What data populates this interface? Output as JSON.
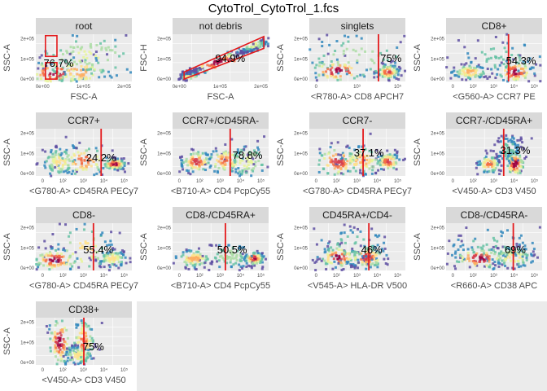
{
  "figure": {
    "title": "CytoTrol_CytoTrol_1.fcs"
  },
  "colors": {
    "panel_bg": "#ebebeb",
    "strip_bg": "#d9d9d9",
    "grid": "#ffffff",
    "gate": "#e41a1c",
    "density": [
      "#5e4fa2",
      "#3288bd",
      "#66c2a5",
      "#abdda4",
      "#e6f598",
      "#fee08b",
      "#fdae61",
      "#f46d43",
      "#d53e4f",
      "#9e0142"
    ]
  },
  "chart_data": [
    {
      "type": "heatmap",
      "title": "root",
      "xlabel": "FSC-A",
      "ylabel": "SSC-A",
      "x_ticks": [
        "0e+00",
        "1e+05",
        "2e+05"
      ],
      "y_ticks": [
        "0e+00",
        "1e+05",
        "2e+05"
      ],
      "gate": {
        "kind": "rectangle",
        "percent": "76.7%"
      }
    },
    {
      "type": "heatmap",
      "title": "not debris",
      "xlabel": "FSC-A",
      "ylabel": "FSC-H",
      "x_ticks": [
        "0e+00",
        "1e+05",
        "2e+05"
      ],
      "y_ticks": [
        "0e+00",
        "1e+05",
        "2e+05"
      ],
      "gate": {
        "kind": "polygon",
        "percent": "94.9%"
      }
    },
    {
      "type": "heatmap",
      "title": "singlets",
      "xlabel": "<R780-A> CD8 APCH7",
      "ylabel": "SSC-A",
      "x_ticks": [
        "0",
        "10³",
        "10⁵"
      ],
      "y_ticks": [
        "0e+00",
        "1e+05",
        "2e+05"
      ],
      "gate": {
        "kind": "threshold",
        "percent": "75%"
      }
    },
    {
      "type": "heatmap",
      "title": "CD8+",
      "xlabel": "<G560-A> CCR7 PE",
      "ylabel": "SSC-A",
      "x_ticks": [
        "0",
        "10²",
        "10³",
        "10⁴",
        "10⁵"
      ],
      "y_ticks": [
        "0e+00",
        "1e+05",
        "2e+05"
      ],
      "gate": {
        "kind": "threshold",
        "percent": "54.3%"
      }
    },
    {
      "type": "heatmap",
      "title": "CCR7+",
      "xlabel": "<G780-A> CD45RA PECy7",
      "ylabel": "SSC-A",
      "x_ticks": [
        "0",
        "10²",
        "10³",
        "10⁴",
        "10⁵"
      ],
      "y_ticks": [
        "0e+00",
        "1e+05",
        "2e+05"
      ],
      "gate": {
        "kind": "threshold",
        "percent": "24.2%"
      }
    },
    {
      "type": "heatmap",
      "title": "CCR7+/CD45RA-",
      "xlabel": "<B710-A> CD4 PcpCy55",
      "ylabel": "SSC-A",
      "x_ticks": [
        "0",
        "10²",
        "10³",
        "10⁴",
        "10⁵"
      ],
      "y_ticks": [
        "0e+00",
        "1e+05",
        "2e+05"
      ],
      "gate": {
        "kind": "threshold",
        "percent": "78.8%"
      }
    },
    {
      "type": "heatmap",
      "title": "CCR7-",
      "xlabel": "<G780-A> CD45RA PECy7",
      "ylabel": "SSC-A",
      "x_ticks": [
        "0",
        "10²",
        "10³",
        "10⁴",
        "10⁵"
      ],
      "y_ticks": [
        "0e+00",
        "1e+05",
        "2e+05"
      ],
      "gate": {
        "kind": "threshold",
        "percent": "37.1%"
      }
    },
    {
      "type": "heatmap",
      "title": "CCR7-/CD45RA+",
      "xlabel": "<V450-A> CD3 V450",
      "ylabel": "SSC-A",
      "x_ticks": [
        "0",
        "10²",
        "10³",
        "10⁴",
        "10⁵"
      ],
      "y_ticks": [
        "0e+00",
        "1e+05",
        "2e+05"
      ],
      "gate": {
        "kind": "threshold",
        "percent": "31.3%"
      }
    },
    {
      "type": "heatmap",
      "title": "CD8-",
      "xlabel": "<G780-A> CD45RA PECy7",
      "ylabel": "SSC-A",
      "x_ticks": [
        "0",
        "10²",
        "10³",
        "10⁴",
        "10⁵"
      ],
      "y_ticks": [
        "0e+00",
        "1e+05",
        "2e+05"
      ],
      "gate": {
        "kind": "threshold",
        "percent": "55.4%"
      }
    },
    {
      "type": "heatmap",
      "title": "CD8-/CD45RA+",
      "xlabel": "<B710-A> CD4 PcpCy55",
      "ylabel": "SSC-A",
      "x_ticks": [
        "0",
        "10²",
        "10³",
        "10⁴",
        "10⁵"
      ],
      "y_ticks": [
        "0e+00",
        "1e+05",
        "2e+05"
      ],
      "gate": {
        "kind": "threshold",
        "percent": "50.5%"
      }
    },
    {
      "type": "heatmap",
      "title": "CD45RA+/CD4-",
      "xlabel": "<V545-A> HLA-DR V500",
      "ylabel": "SSC-A",
      "x_ticks": [
        "0",
        "10²",
        "10³",
        "10⁴",
        "10⁵"
      ],
      "y_ticks": [
        "0e+00",
        "1e+05",
        "2e+05"
      ],
      "gate": {
        "kind": "threshold",
        "percent": "46%"
      }
    },
    {
      "type": "heatmap",
      "title": "CD8-/CD45RA-",
      "xlabel": "<R660-A> CD38 APC",
      "ylabel": "SSC-A",
      "x_ticks": [
        "0",
        "10²",
        "10³",
        "10⁴",
        "10⁵"
      ],
      "y_ticks": [
        "0e+00",
        "1e+05",
        "2e+05"
      ],
      "gate": {
        "kind": "threshold",
        "percent": "69%"
      }
    },
    {
      "type": "heatmap",
      "title": "CD38+",
      "xlabel": "<V450-A> CD3 V450",
      "ylabel": "SSC-A",
      "x_ticks": [
        "0",
        "10²",
        "10³",
        "10⁴",
        "10⁵"
      ],
      "y_ticks": [
        "0e+00",
        "1e+05",
        "2e+05"
      ],
      "gate": {
        "kind": "threshold",
        "percent": "75%"
      }
    }
  ]
}
